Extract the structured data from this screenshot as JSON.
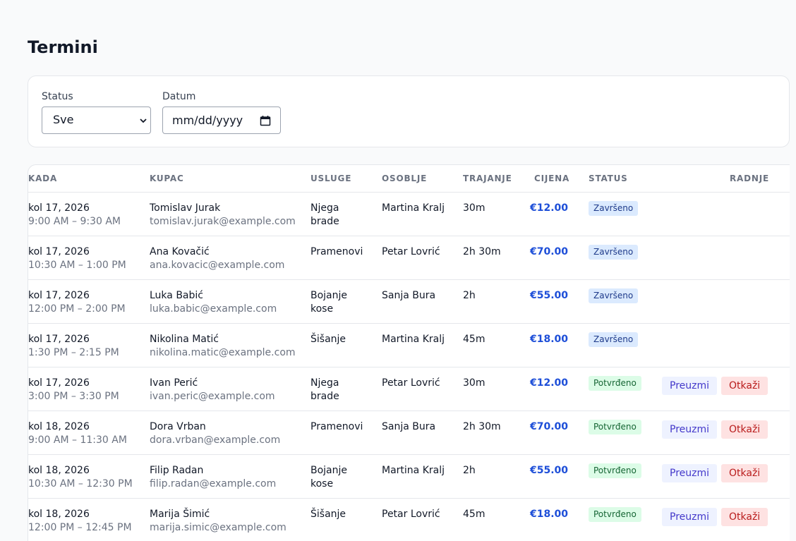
{
  "page": {
    "title": "Termini"
  },
  "filters": {
    "status_label": "Status",
    "status_value": "Sve",
    "date_label": "Datum",
    "date_placeholder": "mm/dd/yyyy"
  },
  "table": {
    "headers": [
      "KADA",
      "KUPAC",
      "USLUGE",
      "OSOBLJE",
      "TRAJANJE",
      "CIJENA",
      "STATUS",
      "RADNJE"
    ],
    "rows": [
      {
        "date": "kol 17, 2026",
        "time": "9:00 AM – 9:30 AM",
        "name": "Tomislav Jurak",
        "email": "tomislav.jurak@example.com",
        "service": [
          "Njega",
          "brade"
        ],
        "staff": "Martina Kralj",
        "duration": "30m",
        "price": "€12.00",
        "status": "Završeno",
        "actions": []
      },
      {
        "date": "kol 17, 2026",
        "time": "10:30 AM – 1:00 PM",
        "name": "Ana Kovačić",
        "email": "ana.kovacic@example.com",
        "service": [
          "Pramenovi"
        ],
        "staff": "Petar Lovrić",
        "duration": "2h 30m",
        "price": "€70.00",
        "status": "Završeno",
        "actions": []
      },
      {
        "date": "kol 17, 2026",
        "time": "12:00 PM – 2:00 PM",
        "name": "Luka Babić",
        "email": "luka.babic@example.com",
        "service": [
          "Bojanje",
          "kose"
        ],
        "staff": "Sanja Bura",
        "duration": "2h",
        "price": "€55.00",
        "status": "Završeno",
        "actions": []
      },
      {
        "date": "kol 17, 2026",
        "time": "1:30 PM – 2:15 PM",
        "name": "Nikolina Matić",
        "email": "nikolina.matic@example.com",
        "service": [
          "Šišanje"
        ],
        "staff": "Martina Kralj",
        "duration": "45m",
        "price": "€18.00",
        "status": "Završeno",
        "actions": []
      },
      {
        "date": "kol 17, 2026",
        "time": "3:00 PM – 3:30 PM",
        "name": "Ivan Perić",
        "email": "ivan.peric@example.com",
        "service": [
          "Njega",
          "brade"
        ],
        "staff": "Petar Lovrić",
        "duration": "30m",
        "price": "€12.00",
        "status": "Potvrđeno",
        "actions": [
          "Preuzmi",
          "Otkaži"
        ]
      },
      {
        "date": "kol 18, 2026",
        "time": "9:00 AM – 11:30 AM",
        "name": "Dora Vrban",
        "email": "dora.vrban@example.com",
        "service": [
          "Pramenovi"
        ],
        "staff": "Sanja Bura",
        "duration": "2h 30m",
        "price": "€70.00",
        "status": "Potvrđeno",
        "actions": [
          "Preuzmi",
          "Otkaži"
        ]
      },
      {
        "date": "kol 18, 2026",
        "time": "10:30 AM – 12:30 PM",
        "name": "Filip Radan",
        "email": "filip.radan@example.com",
        "service": [
          "Bojanje",
          "kose"
        ],
        "staff": "Martina Kralj",
        "duration": "2h",
        "price": "€55.00",
        "status": "Potvrđeno",
        "actions": [
          "Preuzmi",
          "Otkaži"
        ]
      },
      {
        "date": "kol 18, 2026",
        "time": "12:00 PM – 12:45 PM",
        "name": "Marija Šimić",
        "email": "marija.simic@example.com",
        "service": [
          "Šišanje"
        ],
        "staff": "Petar Lovrić",
        "duration": "45m",
        "price": "€18.00",
        "status": "Potvrđeno",
        "actions": [
          "Preuzmi",
          "Otkaži"
        ]
      }
    ]
  },
  "colors": {
    "price": "#1d4ed8",
    "badge_done_bg": "#dbeafe",
    "badge_confirmed_bg": "#dcfce7",
    "take_button_bg": "#eef2ff",
    "cancel_button_bg": "#fee2e2"
  },
  "icons": {
    "status_select": "chevron-down-icon",
    "date_input": "calendar-icon"
  }
}
